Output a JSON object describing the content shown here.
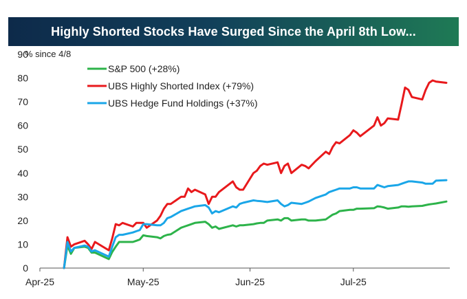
{
  "chart_data": {
    "type": "line",
    "title": "Highly Shorted Stocks Have Surged Since the April 8th Low...",
    "ylabel": "% since 4/8",
    "ylim": [
      0,
      90
    ],
    "yticks": [
      0,
      10,
      20,
      30,
      40,
      50,
      60,
      70,
      80,
      90
    ],
    "x_tick_labels": [
      "Apr-25",
      "May-25",
      "Jun-25",
      "Jul-25"
    ],
    "x_tick_dates": [
      "2025-04-01",
      "2025-05-01",
      "2025-06-01",
      "2025-07-01"
    ],
    "xlim": [
      "2025-04-01",
      "2025-07-29"
    ],
    "grid": false,
    "legend_position": "top-left",
    "series": [
      {
        "name": "S&P 500 (+28%)",
        "color": "#2db34a",
        "x": [
          "2025-04-08",
          "2025-04-09",
          "2025-04-10",
          "2025-04-11",
          "2025-04-14",
          "2025-04-15",
          "2025-04-16",
          "2025-04-17",
          "2025-04-21",
          "2025-04-22",
          "2025-04-23",
          "2025-04-24",
          "2025-04-25",
          "2025-04-28",
          "2025-04-29",
          "2025-04-30",
          "2025-05-01",
          "2025-05-02",
          "2025-05-05",
          "2025-05-06",
          "2025-05-07",
          "2025-05-08",
          "2025-05-09",
          "2025-05-12",
          "2025-05-13",
          "2025-05-14",
          "2025-05-15",
          "2025-05-16",
          "2025-05-19",
          "2025-05-20",
          "2025-05-21",
          "2025-05-22",
          "2025-05-23",
          "2025-05-27",
          "2025-05-28",
          "2025-05-29",
          "2025-05-30",
          "2025-06-02",
          "2025-06-03",
          "2025-06-04",
          "2025-06-05",
          "2025-06-06",
          "2025-06-09",
          "2025-06-10",
          "2025-06-11",
          "2025-06-12",
          "2025-06-13",
          "2025-06-16",
          "2025-06-17",
          "2025-06-18",
          "2025-06-20",
          "2025-06-23",
          "2025-06-24",
          "2025-06-25",
          "2025-06-26",
          "2025-06-27",
          "2025-06-30",
          "2025-07-01",
          "2025-07-02",
          "2025-07-03",
          "2025-07-07",
          "2025-07-08",
          "2025-07-09",
          "2025-07-10",
          "2025-07-11",
          "2025-07-14",
          "2025-07-15",
          "2025-07-16",
          "2025-07-17",
          "2025-07-18",
          "2025-07-21",
          "2025-07-22",
          "2025-07-23",
          "2025-07-24",
          "2025-07-25",
          "2025-07-28"
        ],
        "values": [
          0,
          9.5,
          6,
          8.5,
          9,
          8.5,
          6.5,
          6.5,
          3.8,
          6.8,
          9,
          11,
          11,
          11,
          11.5,
          12,
          13.8,
          13.5,
          13,
          12.5,
          13.5,
          14,
          14.2,
          17,
          17.5,
          18,
          18.5,
          19,
          19.5,
          18.5,
          17,
          17.5,
          16.5,
          18,
          17.5,
          18,
          18,
          18.5,
          18.8,
          19,
          19,
          20,
          20.5,
          20,
          21,
          21,
          20,
          20.5,
          20.5,
          20,
          20,
          20.5,
          21.5,
          22.5,
          23,
          24,
          24.5,
          24.5,
          25,
          25,
          25.2,
          26,
          25.8,
          25.5,
          25,
          25.5,
          26,
          26,
          25.8,
          26,
          26.2,
          26.5,
          26.8,
          27,
          27.2,
          28
        ]
      },
      {
        "name": "UBS Highly Shorted Index (+79%)",
        "color": "#e8191c",
        "x": [
          "2025-04-08",
          "2025-04-09",
          "2025-04-10",
          "2025-04-11",
          "2025-04-14",
          "2025-04-15",
          "2025-04-16",
          "2025-04-17",
          "2025-04-21",
          "2025-04-22",
          "2025-04-23",
          "2025-04-24",
          "2025-04-25",
          "2025-04-28",
          "2025-04-29",
          "2025-04-30",
          "2025-05-01",
          "2025-05-02",
          "2025-05-05",
          "2025-05-06",
          "2025-05-07",
          "2025-05-08",
          "2025-05-09",
          "2025-05-12",
          "2025-05-13",
          "2025-05-14",
          "2025-05-15",
          "2025-05-16",
          "2025-05-19",
          "2025-05-20",
          "2025-05-21",
          "2025-05-22",
          "2025-05-23",
          "2025-05-27",
          "2025-05-28",
          "2025-05-29",
          "2025-05-30",
          "2025-06-02",
          "2025-06-03",
          "2025-06-04",
          "2025-06-05",
          "2025-06-06",
          "2025-06-09",
          "2025-06-10",
          "2025-06-11",
          "2025-06-12",
          "2025-06-13",
          "2025-06-16",
          "2025-06-17",
          "2025-06-18",
          "2025-06-20",
          "2025-06-23",
          "2025-06-24",
          "2025-06-25",
          "2025-06-26",
          "2025-06-27",
          "2025-06-30",
          "2025-07-01",
          "2025-07-02",
          "2025-07-03",
          "2025-07-07",
          "2025-07-08",
          "2025-07-09",
          "2025-07-10",
          "2025-07-11",
          "2025-07-14",
          "2025-07-15",
          "2025-07-16",
          "2025-07-17",
          "2025-07-18",
          "2025-07-21",
          "2025-07-22",
          "2025-07-23",
          "2025-07-24",
          "2025-07-25",
          "2025-07-28"
        ],
        "values": [
          0,
          13,
          9,
          10,
          11.5,
          10,
          8,
          11,
          7.5,
          12.5,
          18.5,
          18,
          19,
          17.5,
          19,
          19,
          19,
          17,
          20,
          22,
          25,
          27,
          27,
          30,
          30,
          33.5,
          32,
          33,
          31,
          27,
          30,
          30,
          32,
          36.5,
          34,
          33,
          33,
          40,
          41,
          43,
          44,
          43.5,
          44.5,
          40,
          43,
          44,
          40,
          43.5,
          43,
          42,
          45,
          49,
          48,
          51,
          53,
          52.5,
          56,
          58,
          57,
          55.5,
          60,
          63.5,
          60,
          61,
          63,
          62.5,
          69,
          76,
          75,
          72,
          71,
          75,
          78,
          79,
          78.5,
          78
        ]
      },
      {
        "name": "UBS Hedge Fund Holdings (+37%)",
        "color": "#1aa6e8",
        "x": [
          "2025-04-08",
          "2025-04-09",
          "2025-04-10",
          "2025-04-11",
          "2025-04-14",
          "2025-04-15",
          "2025-04-16",
          "2025-04-17",
          "2025-04-21",
          "2025-04-22",
          "2025-04-23",
          "2025-04-24",
          "2025-04-25",
          "2025-04-28",
          "2025-04-29",
          "2025-04-30",
          "2025-05-01",
          "2025-05-02",
          "2025-05-05",
          "2025-05-06",
          "2025-05-07",
          "2025-05-08",
          "2025-05-09",
          "2025-05-12",
          "2025-05-13",
          "2025-05-14",
          "2025-05-15",
          "2025-05-16",
          "2025-05-19",
          "2025-05-20",
          "2025-05-21",
          "2025-05-22",
          "2025-05-23",
          "2025-05-27",
          "2025-05-28",
          "2025-05-29",
          "2025-05-30",
          "2025-06-02",
          "2025-06-03",
          "2025-06-04",
          "2025-06-05",
          "2025-06-06",
          "2025-06-09",
          "2025-06-10",
          "2025-06-11",
          "2025-06-12",
          "2025-06-13",
          "2025-06-16",
          "2025-06-17",
          "2025-06-18",
          "2025-06-20",
          "2025-06-23",
          "2025-06-24",
          "2025-06-25",
          "2025-06-26",
          "2025-06-27",
          "2025-06-30",
          "2025-07-01",
          "2025-07-02",
          "2025-07-03",
          "2025-07-07",
          "2025-07-08",
          "2025-07-09",
          "2025-07-10",
          "2025-07-11",
          "2025-07-14",
          "2025-07-15",
          "2025-07-16",
          "2025-07-17",
          "2025-07-18",
          "2025-07-21",
          "2025-07-22",
          "2025-07-23",
          "2025-07-24",
          "2025-07-25",
          "2025-07-28"
        ],
        "values": [
          0,
          11,
          7,
          8.5,
          9.5,
          9,
          7,
          7.5,
          4.8,
          9,
          13,
          14,
          14,
          15,
          15.5,
          16,
          18.5,
          18.5,
          18,
          18,
          19,
          21,
          21.5,
          24,
          24.5,
          25,
          25.5,
          26,
          26.5,
          25.5,
          23,
          24,
          23.5,
          26,
          25.5,
          27,
          27.5,
          28.5,
          28.3,
          28.2,
          28,
          27.8,
          28.5,
          27,
          26,
          26.5,
          27.5,
          27,
          27.5,
          28,
          29.5,
          31,
          32,
          32.5,
          33,
          33.5,
          33.5,
          34,
          34,
          33.5,
          33.5,
          35,
          34.5,
          34,
          34.5,
          35,
          35.5,
          36,
          36.5,
          36.5,
          36,
          35.5,
          35.5,
          35.5,
          36.8,
          37
        ]
      }
    ]
  }
}
